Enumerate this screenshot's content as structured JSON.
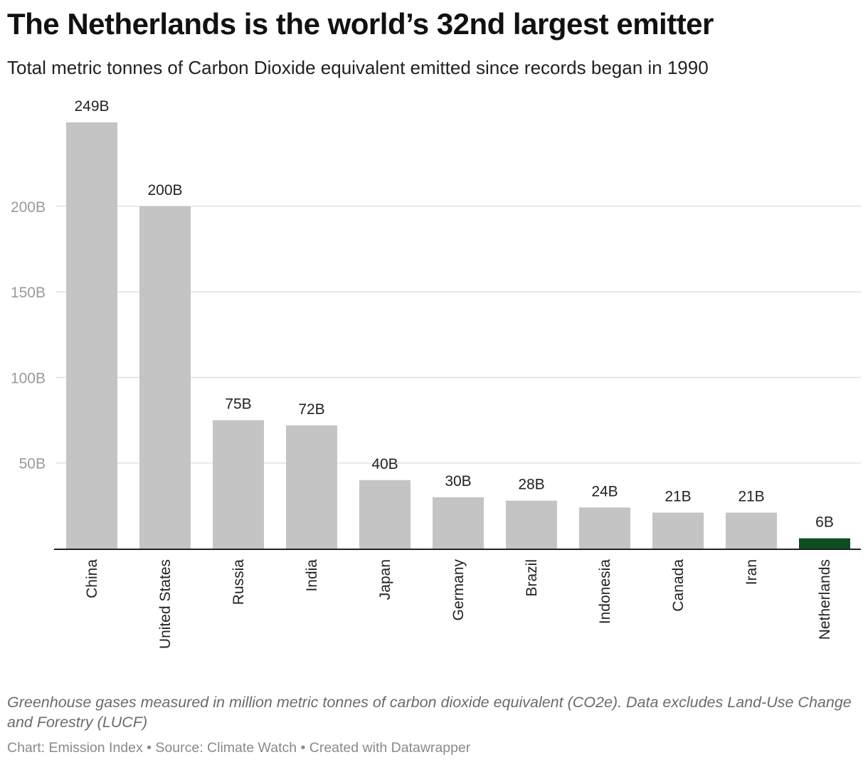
{
  "header": {
    "title": "The Netherlands is the world’s 32nd largest emitter",
    "subtitle": "Total metric tonnes of Carbon Dioxide equivalent emitted since records began in 1990"
  },
  "chart_data": {
    "type": "bar",
    "title": "The Netherlands is the world’s 32nd largest emitter",
    "subtitle": "Total metric tonnes of Carbon Dioxide equivalent emitted since records began in 1990",
    "categories": [
      "China",
      "United States",
      "Russia",
      "India",
      "Japan",
      "Germany",
      "Brazil",
      "Indonesia",
      "Canada",
      "Iran",
      "Netherlands"
    ],
    "values": [
      249,
      200,
      75,
      72,
      40,
      30,
      28,
      24,
      21,
      21,
      6
    ],
    "value_labels": [
      "249B",
      "200B",
      "75B",
      "72B",
      "40B",
      "30B",
      "28B",
      "24B",
      "21B",
      "21B",
      "6B"
    ],
    "unit": "B",
    "ylim": [
      0,
      249
    ],
    "yticks": [
      50,
      100,
      150,
      200
    ],
    "ytick_labels": [
      "50B",
      "100B",
      "150B",
      "200B"
    ],
    "grid": true,
    "colors": {
      "default": "#c4c4c4",
      "highlight": "#0e4d22",
      "highlight_category": "Netherlands",
      "grid": "#e3e3e3",
      "axis": "#222222"
    }
  },
  "footer": {
    "notes": "Greenhouse gases measured in million metric tonnes of carbon dioxide equivalent (CO2e). Data excludes Land-Use Change and Forestry (LUCF)",
    "credits": "Chart: Emission Index • Source: Climate Watch • Created with Datawrapper"
  }
}
